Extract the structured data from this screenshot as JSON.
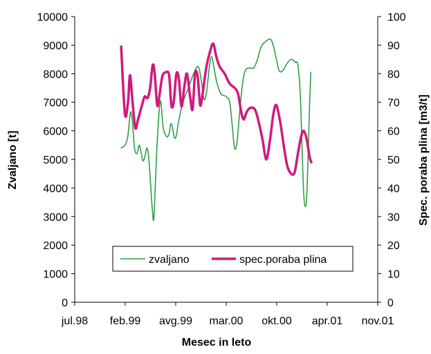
{
  "chart_data": {
    "type": "line",
    "title": "",
    "xlabel": "Mesec in leto",
    "ylabel_left": "Zvaljano [t]",
    "ylabel_right": "Spec. poraba plina [m3/t]",
    "x_ticks": [
      "jul.98",
      "feb.99",
      "avg.99",
      "mar.00",
      "okt.00",
      "apr.01",
      "nov.01"
    ],
    "y_left_ticks": [
      "0",
      "1000",
      "2000",
      "3000",
      "4000",
      "5000",
      "6000",
      "7000",
      "8000",
      "9000",
      "10000"
    ],
    "y_right_ticks": [
      "0",
      "10",
      "20",
      "30",
      "40",
      "50",
      "60",
      "70",
      "80",
      "90",
      "100"
    ],
    "ylim_left": [
      0,
      10000
    ],
    "ylim_right": [
      0,
      100
    ],
    "x_range_months": [
      "1998-07",
      "2001-11"
    ],
    "grid": false,
    "legend_position": "bottom-center",
    "series": [
      {
        "name": "zvaljano",
        "axis": "left",
        "color": "#2e9e46",
        "stroke": "thin",
        "points": [
          [
            "1999-01-05",
            5400
          ],
          [
            "1999-01-20",
            5500
          ],
          [
            "1999-02-01",
            5800
          ],
          [
            "1999-02-12",
            6650
          ],
          [
            "1999-02-20",
            6300
          ],
          [
            "1999-02-28",
            5400
          ],
          [
            "1999-03-08",
            5200
          ],
          [
            "1999-03-16",
            5500
          ],
          [
            "1999-03-24",
            5250
          ],
          [
            "1999-04-01",
            4950
          ],
          [
            "1999-04-09",
            5100
          ],
          [
            "1999-04-17",
            5400
          ],
          [
            "1999-04-24",
            5100
          ],
          [
            "1999-05-01",
            4200
          ],
          [
            "1999-05-08",
            3300
          ],
          [
            "1999-05-14",
            2880
          ],
          [
            "1999-05-20",
            4000
          ],
          [
            "1999-05-28",
            5600
          ],
          [
            "1999-06-10",
            7050
          ],
          [
            "1999-06-22",
            6100
          ],
          [
            "1999-07-05",
            5800
          ],
          [
            "1999-07-15",
            5900
          ],
          [
            "1999-07-22",
            6250
          ],
          [
            "1999-07-29",
            6100
          ],
          [
            "1999-08-06",
            5750
          ],
          [
            "1999-08-14",
            5850
          ],
          [
            "1999-08-22",
            6300
          ],
          [
            "1999-09-10",
            7000
          ],
          [
            "1999-10-01",
            7500
          ],
          [
            "1999-10-22",
            8000
          ],
          [
            "1999-11-10",
            8250
          ],
          [
            "1999-11-22",
            7800
          ],
          [
            "1999-12-03",
            7100
          ],
          [
            "1999-12-14",
            7400
          ],
          [
            "1999-12-24",
            8200
          ],
          [
            "2000-01-03",
            8600
          ],
          [
            "2000-01-13",
            8200
          ],
          [
            "2000-01-24",
            7700
          ],
          [
            "2000-02-10",
            7300
          ],
          [
            "2000-03-01",
            7200
          ],
          [
            "2000-03-15",
            7000
          ],
          [
            "2000-03-25",
            6200
          ],
          [
            "2000-04-01",
            5600
          ],
          [
            "2000-04-06",
            5350
          ],
          [
            "2000-04-14",
            5600
          ],
          [
            "2000-04-24",
            6600
          ],
          [
            "2000-05-05",
            7600
          ],
          [
            "2000-05-16",
            8100
          ],
          [
            "2000-06-01",
            8200
          ],
          [
            "2000-06-20",
            8200
          ],
          [
            "2000-07-05",
            8500
          ],
          [
            "2000-07-20",
            8950
          ],
          [
            "2000-08-10",
            9150
          ],
          [
            "2000-08-28",
            9200
          ],
          [
            "2000-09-10",
            8900
          ],
          [
            "2000-09-20",
            8500
          ],
          [
            "2000-10-01",
            8100
          ],
          [
            "2000-10-15",
            8100
          ],
          [
            "2000-10-28",
            8300
          ],
          [
            "2000-11-10",
            8450
          ],
          [
            "2000-11-22",
            8500
          ],
          [
            "2000-12-05",
            8400
          ],
          [
            "2000-12-15",
            8300
          ],
          [
            "2000-12-25",
            7200
          ],
          [
            "2001-01-02",
            5200
          ],
          [
            "2001-01-08",
            3800
          ],
          [
            "2001-01-14",
            3350
          ],
          [
            "2001-01-20",
            3700
          ],
          [
            "2001-01-26",
            5200
          ],
          [
            "2001-02-01",
            6900
          ],
          [
            "2001-02-06",
            8050
          ]
        ]
      },
      {
        "name": "spec.poraba plina",
        "axis": "right",
        "color": "#d1187d",
        "stroke": "thick",
        "points": [
          [
            "1999-01-05",
            89.5
          ],
          [
            "1999-01-20",
            66.0
          ],
          [
            "1999-02-02",
            70.0
          ],
          [
            "1999-02-10",
            79.5
          ],
          [
            "1999-02-20",
            70.5
          ],
          [
            "1999-03-01",
            61.0
          ],
          [
            "1999-03-12",
            64.0
          ],
          [
            "1999-03-28",
            69.0
          ],
          [
            "1999-04-08",
            72.0
          ],
          [
            "1999-04-20",
            71.5
          ],
          [
            "1999-04-30",
            75.0
          ],
          [
            "1999-05-10",
            83.0
          ],
          [
            "1999-05-18",
            80.0
          ],
          [
            "1999-05-28",
            69.0
          ],
          [
            "1999-06-06",
            72.0
          ],
          [
            "1999-06-18",
            79.0
          ],
          [
            "1999-07-01",
            80.5
          ],
          [
            "1999-07-15",
            79.5
          ],
          [
            "1999-07-24",
            69.0
          ],
          [
            "1999-08-03",
            70.0
          ],
          [
            "1999-08-14",
            80.0
          ],
          [
            "1999-08-24",
            78.0
          ],
          [
            "1999-09-04",
            68.5
          ],
          [
            "1999-09-16",
            76.0
          ],
          [
            "1999-09-26",
            80.0
          ],
          [
            "1999-10-08",
            72.0
          ],
          [
            "1999-10-18",
            67.5
          ],
          [
            "1999-10-28",
            80.0
          ],
          [
            "1999-11-08",
            79.0
          ],
          [
            "1999-11-18",
            69.0
          ],
          [
            "1999-11-28",
            73.0
          ],
          [
            "1999-12-12",
            82.0
          ],
          [
            "1999-12-28",
            88.0
          ],
          [
            "2000-01-10",
            90.5
          ],
          [
            "2000-01-22",
            86.0
          ],
          [
            "2000-02-05",
            82.5
          ],
          [
            "2000-02-25",
            80.0
          ],
          [
            "2000-03-15",
            76.5
          ],
          [
            "2000-04-05",
            75.0
          ],
          [
            "2000-04-18",
            73.0
          ],
          [
            "2000-04-30",
            67.0
          ],
          [
            "2000-05-10",
            64.0
          ],
          [
            "2000-05-22",
            66.5
          ],
          [
            "2000-06-05",
            68.0
          ],
          [
            "2000-06-25",
            67.5
          ],
          [
            "2000-07-10",
            63.0
          ],
          [
            "2000-07-25",
            57.0
          ],
          [
            "2000-08-10",
            50.0
          ],
          [
            "2000-08-25",
            57.0
          ],
          [
            "2000-09-08",
            66.0
          ],
          [
            "2000-09-20",
            69.0
          ],
          [
            "2000-10-05",
            63.0
          ],
          [
            "2000-10-18",
            55.5
          ],
          [
            "2000-11-02",
            48.0
          ],
          [
            "2000-11-18",
            45.0
          ],
          [
            "2000-12-02",
            45.5
          ],
          [
            "2000-12-15",
            52.0
          ],
          [
            "2000-12-28",
            58.0
          ],
          [
            "2001-01-08",
            60.0
          ],
          [
            "2001-01-20",
            57.0
          ],
          [
            "2001-02-01",
            51.0
          ],
          [
            "2001-02-08",
            49.0
          ]
        ]
      }
    ]
  }
}
